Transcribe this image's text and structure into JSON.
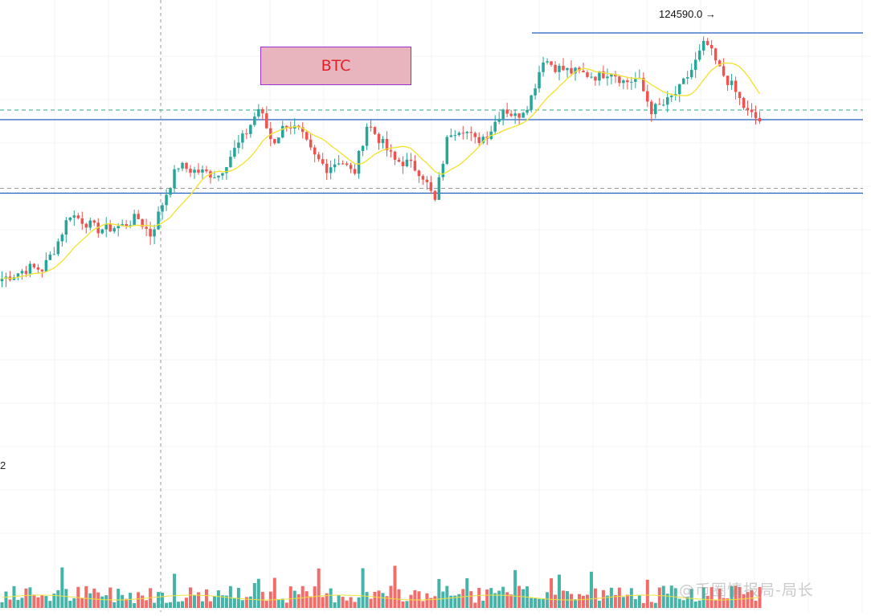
{
  "chart_data": {
    "type": "candlestick",
    "symbol_label": "BTC",
    "peak_annotation": "124590.0 →",
    "left_edge_label": "2",
    "watermark": "@币圈情报局-局长",
    "price_range": [
      95000,
      126000
    ],
    "series": [
      {
        "name": "",
        "kind": "price-close",
        "values": [
          104200,
          104600,
          105100,
          105000,
          106900,
          109600,
          109000,
          108300,
          108400,
          108600,
          109300,
          107800,
          110900,
          113600,
          113200,
          113000,
          112800,
          114600,
          116200,
          118400,
          115400,
          117100,
          116400,
          114400,
          113400,
          114100,
          112800,
          117100,
          115600,
          114000,
          113800,
          113000,
          110600,
          116300,
          116800,
          115600,
          116300,
          118400,
          117600,
          118900,
          122500,
          121700,
          121400,
          121200,
          121000,
          121500,
          120500,
          120800,
          118200,
          118700,
          119800,
          121600,
          123900,
          121600,
          120100,
          118100,
          117300
        ]
      },
      {
        "name": "",
        "kind": "moving-average",
        "color": "#f2e33a"
      }
    ],
    "horizontal_levels": [
      {
        "value": 124600,
        "style": "solid",
        "color": "#1f5fbf"
      },
      {
        "value": 118200,
        "style": "dashed",
        "color": "#2aa88a"
      },
      {
        "value": 117400,
        "style": "solid",
        "color": "#1f5fbf"
      },
      {
        "value": 111700,
        "style": "dashed",
        "color": "#9a9a9a"
      },
      {
        "value": 111300,
        "style": "solid",
        "color": "#1f5fbf"
      }
    ],
    "colors": {
      "up": "#26a69a",
      "down": "#ef5350",
      "ma": "#f2e33a"
    }
  }
}
